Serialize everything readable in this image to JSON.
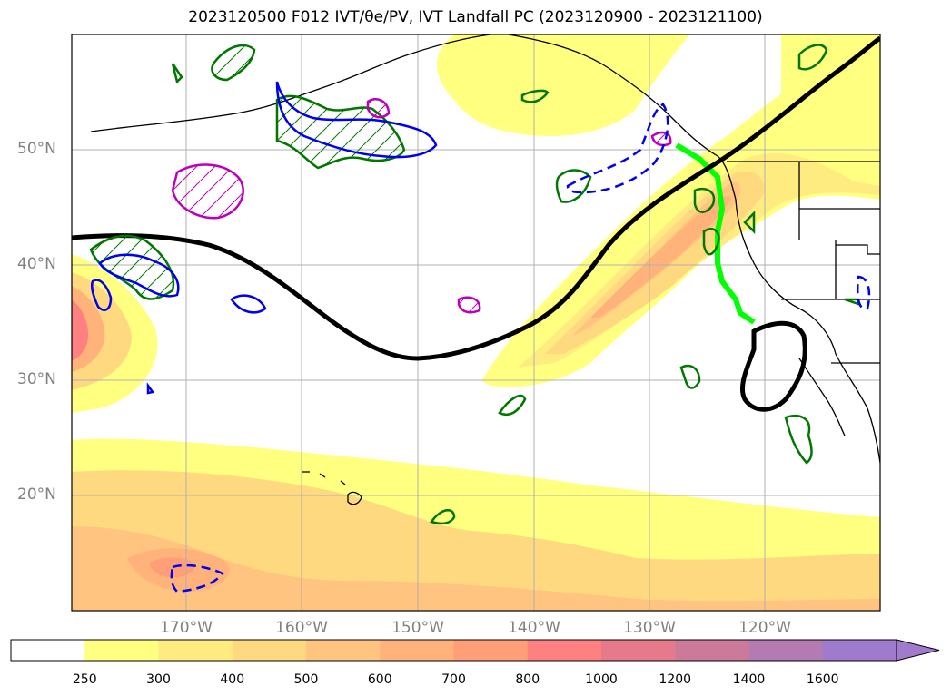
{
  "title": "2023120500 F012 IVT/θe/PV, IVT Landfall PC (2023120900 - 2023121100)",
  "lat_labels": [
    "50°N",
    "40°N",
    "30°N",
    "20°N"
  ],
  "lon_labels": [
    "170°W",
    "160°W",
    "150°W",
    "140°W",
    "130°W",
    "120°W"
  ],
  "colorbar": {
    "ticks": [
      "250",
      "300",
      "400",
      "500",
      "600",
      "700",
      "800",
      "1000",
      "1200",
      "1400",
      "1600"
    ],
    "colors": [
      "#ffffff",
      "#ffff80",
      "#ffec80",
      "#ffd980",
      "#ffc580",
      "#ffb27a",
      "#ff9e77",
      "#ff8080",
      "#e67a8c",
      "#cc7a99",
      "#b37ab3",
      "#a07acc"
    ],
    "extend": "max"
  },
  "colors": {
    "land_outline": "#000000",
    "pc_line": "#000000",
    "theta_e_contour": "#007700",
    "pv_contour": "#0000ee",
    "hatched_region": "#bb00bb",
    "landfall_track": "#00ff00",
    "grid": "#b0b0b0"
  },
  "icons": {
    "colorbar_extension": "triangle-arrow"
  }
}
